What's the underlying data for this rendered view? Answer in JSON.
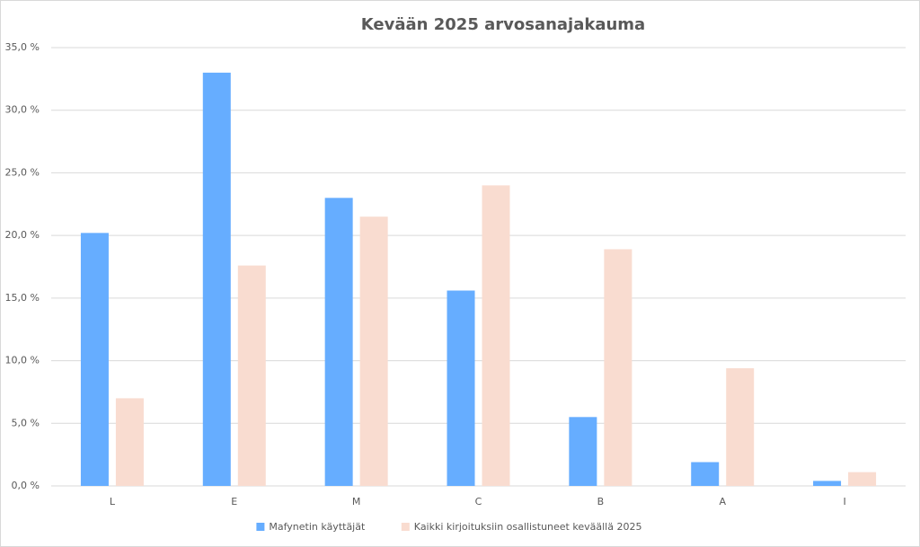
{
  "chart_data": {
    "type": "bar",
    "title": "Kevään 2025 arvosanajakauma",
    "categories": [
      "L",
      "E",
      "M",
      "C",
      "B",
      "A",
      "I"
    ],
    "series": [
      {
        "name": "Mafynetin käyttäjät",
        "color": "#66adff",
        "values": [
          20.2,
          33.0,
          23.0,
          15.6,
          5.5,
          1.9,
          0.4
        ]
      },
      {
        "name": "Kaikki kirjoituksiin osallistuneet keväällä 2025",
        "color": "#f9dcd0",
        "values": [
          7.0,
          17.6,
          21.5,
          24.0,
          18.9,
          9.4,
          1.1
        ]
      }
    ],
    "ylim": [
      0,
      35
    ],
    "yticks": [
      {
        "value": 0,
        "label": "0,0 %"
      },
      {
        "value": 5,
        "label": "5,0 %"
      },
      {
        "value": 10,
        "label": "10,0 %"
      },
      {
        "value": 15,
        "label": "15,0 %"
      },
      {
        "value": 20,
        "label": "20,0 %"
      },
      {
        "value": 25,
        "label": "25,0 %"
      },
      {
        "value": 30,
        "label": "30,0 %"
      },
      {
        "value": 35,
        "label": "35,0 %"
      }
    ],
    "grid": true,
    "legend": "bottom"
  }
}
